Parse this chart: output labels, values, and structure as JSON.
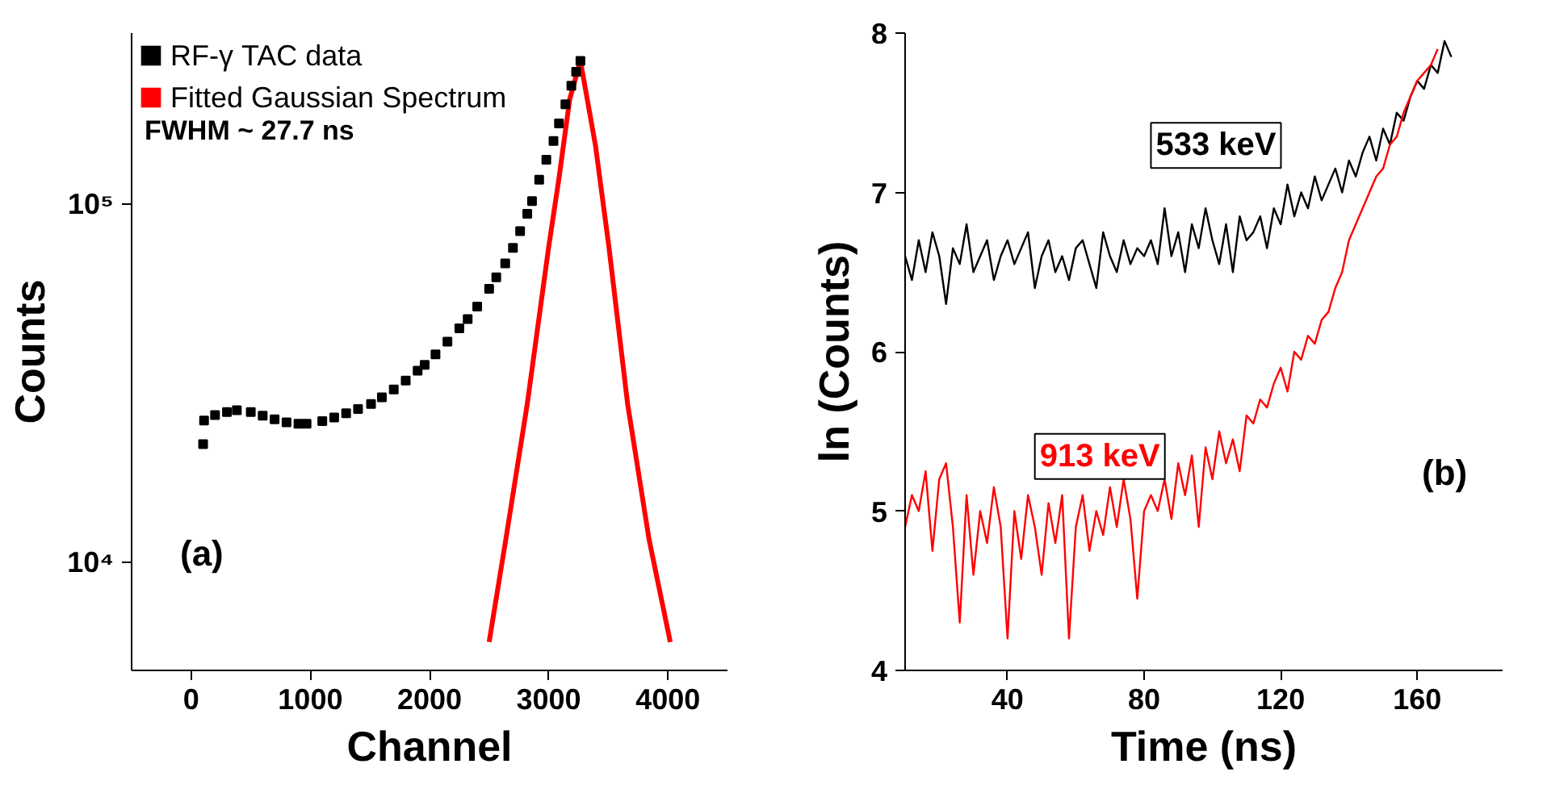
{
  "chart_data": [
    {
      "type": "scatter",
      "xlabel": "Channel",
      "ylabel": "Counts",
      "log": "y",
      "legend": "top left",
      "grid": false,
      "marker": "square",
      "xlim": [
        -500,
        4500
      ],
      "xticks": [
        0,
        1000,
        2000,
        3000,
        4000
      ],
      "ylim": [
        5000,
        300000
      ],
      "yticks": [
        {
          "value": 10000,
          "label": "10⁴"
        },
        {
          "value": 100000,
          "label": "10⁵"
        }
      ],
      "annotations": [
        "FWHM ~ 27.7 ns",
        "(a)"
      ],
      "series": [
        {
          "name": "RF-γ TAC data",
          "color": "#000000",
          "x": [
            100,
            108,
            200,
            300,
            383,
            500,
            600,
            700,
            800,
            900,
            968,
            1100,
            1200,
            1300,
            1400,
            1509,
            1600,
            1700,
            1800,
            1900,
            1959,
            2050,
            2150,
            2250,
            2320,
            2400,
            2500,
            2560,
            2635,
            2700,
            2760,
            2820,
            2860,
            2920,
            2980,
            3040,
            3086,
            3140,
            3190,
            3230,
            3266
          ],
          "values": [
            21400,
            24900,
            25800,
            26300,
            26600,
            26300,
            25700,
            25100,
            24600,
            24400,
            24400,
            24800,
            25400,
            26100,
            26800,
            27700,
            28900,
            30400,
            32200,
            34300,
            35600,
            38100,
            41300,
            45000,
            47800,
            51800,
            58000,
            62500,
            68300,
            75500,
            84000,
            94000,
            102000,
            117000,
            133000,
            150000,
            168000,
            190000,
            214000,
            234000,
            251000
          ]
        },
        {
          "name": "Fitted Gaussian Spectrum",
          "type": "line",
          "marker": "none",
          "color": "#ff0000",
          "x": [
            2500,
            2640,
            2820,
            3000,
            3086,
            3176,
            3266,
            3392,
            3505,
            3662,
            3842,
            4020
          ],
          "values": [
            6000,
            11600,
            27700,
            76000,
            118000,
            196000,
            251000,
            146000,
            76000,
            27700,
            11600,
            6000
          ]
        }
      ]
    },
    {
      "type": "line",
      "xlabel": "Time (ns)",
      "ylabel": "ln (Counts)",
      "grid": false,
      "marker": "none",
      "xlim": [
        10,
        185
      ],
      "xticks": [
        40,
        80,
        120,
        160
      ],
      "ylim": [
        4,
        8
      ],
      "yticks": [
        4,
        5,
        6,
        7,
        8
      ],
      "annotations": [
        "(b)"
      ],
      "series": [
        {
          "name": "533 keV",
          "color": "#000000",
          "x": [
            10,
            12,
            14,
            16,
            18,
            20,
            22,
            24,
            26,
            28,
            30,
            32,
            34,
            36,
            38,
            40,
            42,
            44,
            46,
            48,
            50,
            52,
            54,
            56,
            58,
            60,
            62,
            64,
            66,
            68,
            70,
            72,
            74,
            76,
            78,
            80,
            82,
            84,
            86,
            88,
            90,
            92,
            94,
            96,
            98,
            100,
            102,
            104,
            106,
            108,
            110,
            112,
            114,
            116,
            118,
            120,
            122,
            124,
            126,
            128,
            130,
            132,
            134,
            136,
            138,
            140,
            142,
            144,
            146,
            148,
            150,
            152,
            154,
            156,
            158,
            160,
            162,
            164,
            166,
            168,
            170
          ],
          "values": [
            6.6,
            6.45,
            6.7,
            6.5,
            6.75,
            6.6,
            6.3,
            6.65,
            6.55,
            6.8,
            6.5,
            6.6,
            6.7,
            6.45,
            6.6,
            6.7,
            6.55,
            6.65,
            6.75,
            6.4,
            6.6,
            6.7,
            6.5,
            6.6,
            6.45,
            6.65,
            6.7,
            6.55,
            6.4,
            6.75,
            6.6,
            6.5,
            6.7,
            6.55,
            6.65,
            6.6,
            6.7,
            6.55,
            6.9,
            6.6,
            6.75,
            6.5,
            6.8,
            6.65,
            6.9,
            6.7,
            6.55,
            6.8,
            6.5,
            6.85,
            6.7,
            6.75,
            6.85,
            6.65,
            6.9,
            6.8,
            7.05,
            6.85,
            7.0,
            6.9,
            7.1,
            6.95,
            7.05,
            7.15,
            7.0,
            7.2,
            7.1,
            7.25,
            7.35,
            7.2,
            7.4,
            7.3,
            7.5,
            7.45,
            7.6,
            7.7,
            7.65,
            7.8,
            7.75,
            7.95,
            7.85
          ]
        },
        {
          "name": "913 keV",
          "color": "#ff0000",
          "x": [
            10,
            12,
            14,
            16,
            18,
            20,
            22,
            24,
            26,
            28,
            30,
            32,
            34,
            36,
            38,
            40,
            42,
            44,
            46,
            48,
            50,
            52,
            54,
            56,
            58,
            60,
            62,
            64,
            66,
            68,
            70,
            72,
            74,
            76,
            78,
            80,
            82,
            84,
            86,
            88,
            90,
            92,
            94,
            96,
            98,
            100,
            102,
            104,
            106,
            108,
            110,
            112,
            114,
            116,
            118,
            120,
            122,
            124,
            126,
            128,
            130,
            132,
            134,
            136,
            138,
            140,
            142,
            144,
            146,
            148,
            150,
            152,
            154,
            156,
            158,
            160,
            162,
            164,
            166
          ],
          "values": [
            4.9,
            5.1,
            5.0,
            5.25,
            4.75,
            5.2,
            5.3,
            4.9,
            4.3,
            5.1,
            4.6,
            5.0,
            4.8,
            5.15,
            4.9,
            4.2,
            5.0,
            4.7,
            5.1,
            4.9,
            4.6,
            5.05,
            4.8,
            5.1,
            4.2,
            4.9,
            5.1,
            4.75,
            5.0,
            4.85,
            5.15,
            4.9,
            5.2,
            4.95,
            4.45,
            5.0,
            5.1,
            5.0,
            5.2,
            4.95,
            5.3,
            5.1,
            5.35,
            4.9,
            5.4,
            5.2,
            5.5,
            5.3,
            5.45,
            5.25,
            5.6,
            5.55,
            5.7,
            5.65,
            5.8,
            5.9,
            5.75,
            6.0,
            5.95,
            6.1,
            6.05,
            6.2,
            6.25,
            6.4,
            6.5,
            6.7,
            6.8,
            6.9,
            7.0,
            7.1,
            7.15,
            7.3,
            7.35,
            7.5,
            7.6,
            7.7,
            7.75,
            7.8,
            7.9
          ]
        }
      ]
    }
  ]
}
